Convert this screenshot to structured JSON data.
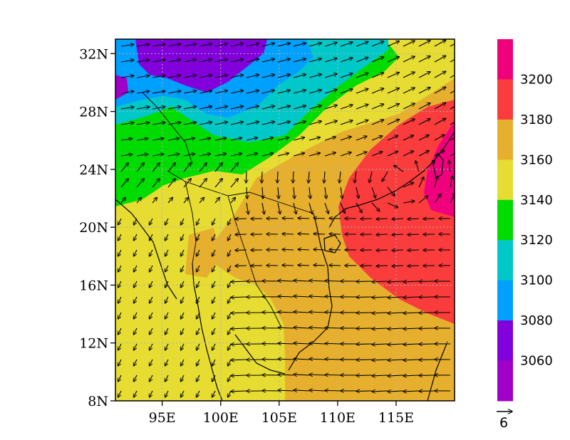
{
  "map": {
    "longitude_ticks": [
      "95E",
      "100E",
      "105E",
      "110E",
      "115E"
    ],
    "latitude_ticks": [
      "32N",
      "28N",
      "24N",
      "20N",
      "16N",
      "12N",
      "8N"
    ],
    "lon_range": [
      91,
      120
    ],
    "lat_range": [
      8,
      33
    ]
  },
  "colorbar": {
    "labels": [
      "3200",
      "3180",
      "3160",
      "3140",
      "3120",
      "3100",
      "3080",
      "3060"
    ],
    "colors": [
      "#f0007d",
      "#fa3c3c",
      "#e6af2d",
      "#e6dc32",
      "#00dc00",
      "#00c8c8",
      "#00a0ff",
      "#8200dc",
      "#a000c8"
    ]
  },
  "reference_vector": {
    "label": "6"
  }
}
